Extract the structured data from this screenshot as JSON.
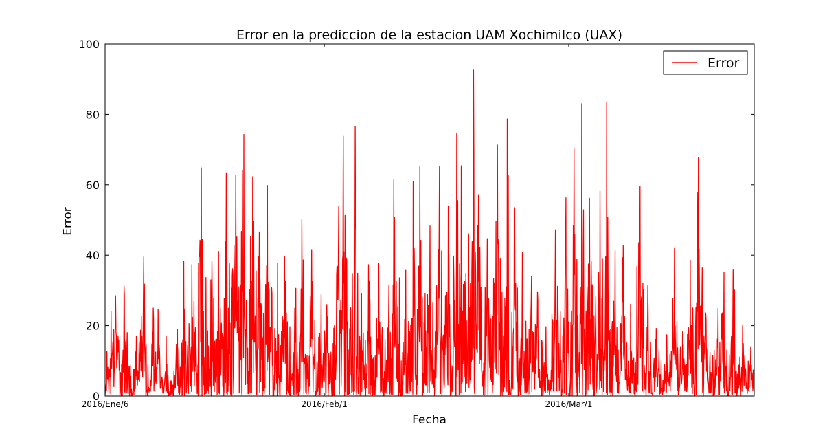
{
  "chart_data": {
    "type": "line",
    "title": "Error en la prediccion de la estacion UAM Xochimilco (UAX)",
    "xlabel": "Fecha",
    "ylabel": "Error",
    "ylim": [
      0,
      100
    ],
    "y_ticks": [
      "0",
      "20",
      "40",
      "60",
      "80",
      "100"
    ],
    "x_ticks": [
      {
        "label": "2016/Ene/6",
        "day": 0
      },
      {
        "label": "2016/Feb/1",
        "day": 26
      },
      {
        "label": "2016/Mar/1",
        "day": 55
      }
    ],
    "xlim_days": [
      0,
      77
    ],
    "legend_position": "top-right",
    "grid": false,
    "series": [
      {
        "name": "Error",
        "color": "#ff0000",
        "sampling": "daily",
        "values": [
          24.0,
          28.5,
          31.3,
          16.9,
          39.5,
          25.0,
          24.6,
          17.1,
          19.0,
          38.3,
          37.3,
          64.8,
          38.2,
          41.1,
          63.4,
          62.8,
          74.3,
          62.3,
          46.6,
          59.8,
          37.7,
          39.7,
          30.6,
          50.1,
          41.6,
          28.8,
          26.0,
          53.8,
          73.8,
          76.6,
          29.2,
          37.3,
          37.8,
          31.6,
          61.4,
          35.9,
          60.9,
          65.2,
          48.3,
          65.1,
          54.0,
          74.6,
          65.4,
          92.6,
          57.2,
          44.7,
          71.3,
          78.7,
          53.5,
          40.7,
          34.0,
          29.6,
          19.7,
          47.2,
          56.3,
          70.3,
          83.0,
          56.2,
          58.2,
          83.5,
          41.3,
          42.7,
          26.1,
          59.5,
          31.3,
          19.2,
          17.4,
          42.1,
          18.3,
          38.6,
          67.7,
          23.6,
          24.9,
          35.2,
          36.0,
          20.0,
          14.0,
          9.6
        ]
      }
    ]
  }
}
